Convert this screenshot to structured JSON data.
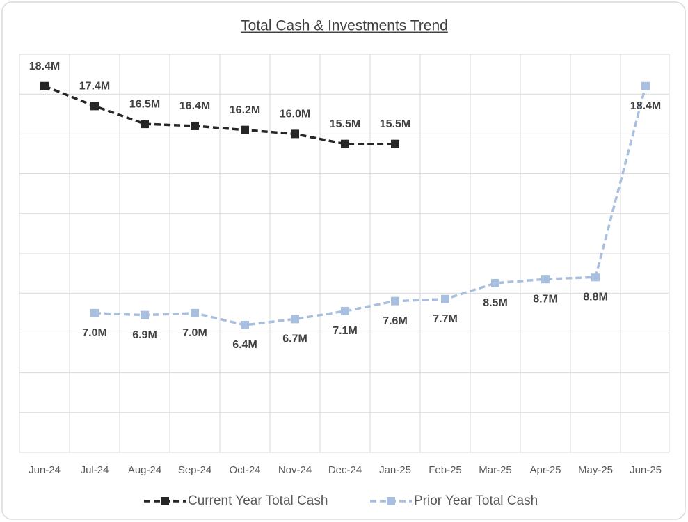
{
  "chart_data": {
    "type": "line",
    "title": "Total Cash & Investments Trend",
    "categories": [
      "Jun-24",
      "Jul-24",
      "Aug-24",
      "Sep-24",
      "Oct-24",
      "Nov-24",
      "Dec-24",
      "Jan-25",
      "Feb-25",
      "Mar-25",
      "Apr-25",
      "May-25",
      "Jun-25"
    ],
    "series": [
      {
        "name": "Current Year Total Cash",
        "color": "#262626",
        "values": [
          18.4,
          17.4,
          16.5,
          16.4,
          16.2,
          16.0,
          15.5,
          15.5,
          null,
          null,
          null,
          null,
          null
        ],
        "value_labels": [
          "18.4M",
          "17.4M",
          "16.5M",
          "16.4M",
          "16.2M",
          "16.0M",
          "15.5M",
          "15.5M",
          null,
          null,
          null,
          null,
          null
        ]
      },
      {
        "name": "Prior Year Total Cash",
        "color": "#a9bfe0",
        "values": [
          null,
          7.0,
          6.9,
          7.0,
          6.4,
          6.7,
          7.1,
          7.6,
          7.7,
          8.5,
          8.7,
          8.8,
          18.4
        ],
        "value_labels": [
          null,
          "7.0M",
          "6.9M",
          "7.0M",
          "6.4M",
          "6.7M",
          "7.1M",
          "7.6M",
          "7.7M",
          "8.5M",
          "8.7M",
          "8.8M",
          "18.4M"
        ]
      }
    ],
    "ylim": [
      0,
      20
    ],
    "grid": true,
    "legend": "bottom"
  }
}
